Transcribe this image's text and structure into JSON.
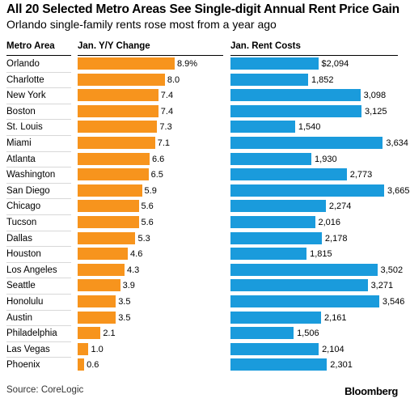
{
  "header": {
    "title": "All 20 Selected Metro Areas See Single-digit Annual Rent Price Gain",
    "subtitle": "Orlando single-family rents rose most from a year ago"
  },
  "footer": {
    "source": "Source: CoreLogic",
    "brand": "Bloomberg"
  },
  "colors": {
    "change_bar": "#f7941d",
    "rent_bar": "#1a9bdc"
  },
  "chart_data": {
    "type": "bar",
    "orientation": "horizontal",
    "column_headers": {
      "category": "Metro Area",
      "change": "Jan. Y/Y Change",
      "rent": "Jan. Rent Costs"
    },
    "categories": [
      "Orlando",
      "Charlotte",
      "New York",
      "Boston",
      "St. Louis",
      "Miami",
      "Atlanta",
      "Washington",
      "San Diego",
      "Chicago",
      "Tucson",
      "Dallas",
      "Houston",
      "Los Angeles",
      "Seattle",
      "Honolulu",
      "Austin",
      "Philadelphia",
      "Las Vegas",
      "Phoenix"
    ],
    "series": [
      {
        "name": "Jan. Y/Y Change",
        "values": [
          8.9,
          8.0,
          7.4,
          7.4,
          7.3,
          7.1,
          6.6,
          6.5,
          5.9,
          5.6,
          5.6,
          5.3,
          4.6,
          4.3,
          3.9,
          3.5,
          3.5,
          2.1,
          1.0,
          0.6
        ],
        "labels": [
          "8.9%",
          "8.0",
          "7.4",
          "7.4",
          "7.3",
          "7.1",
          "6.6",
          "6.5",
          "5.9",
          "5.6",
          "5.6",
          "5.3",
          "4.6",
          "4.3",
          "3.9",
          "3.5",
          "3.5",
          "2.1",
          "1.0",
          "0.6"
        ]
      },
      {
        "name": "Jan. Rent Costs",
        "values": [
          2094,
          1852,
          3098,
          3125,
          1540,
          3634,
          1930,
          2773,
          3665,
          2274,
          2016,
          2178,
          1815,
          3502,
          3271,
          3546,
          2161,
          1506,
          2104,
          2301
        ],
        "labels": [
          "$2,094",
          "1,852",
          "3,098",
          "3,125",
          "1,540",
          "3,634",
          "1,930",
          "2,773",
          "3,665",
          "2,274",
          "2,016",
          "2,178",
          "1,815",
          "3,502",
          "3,271",
          "3,546",
          "2,161",
          "1,506",
          "2,104",
          "2,301"
        ]
      }
    ]
  }
}
